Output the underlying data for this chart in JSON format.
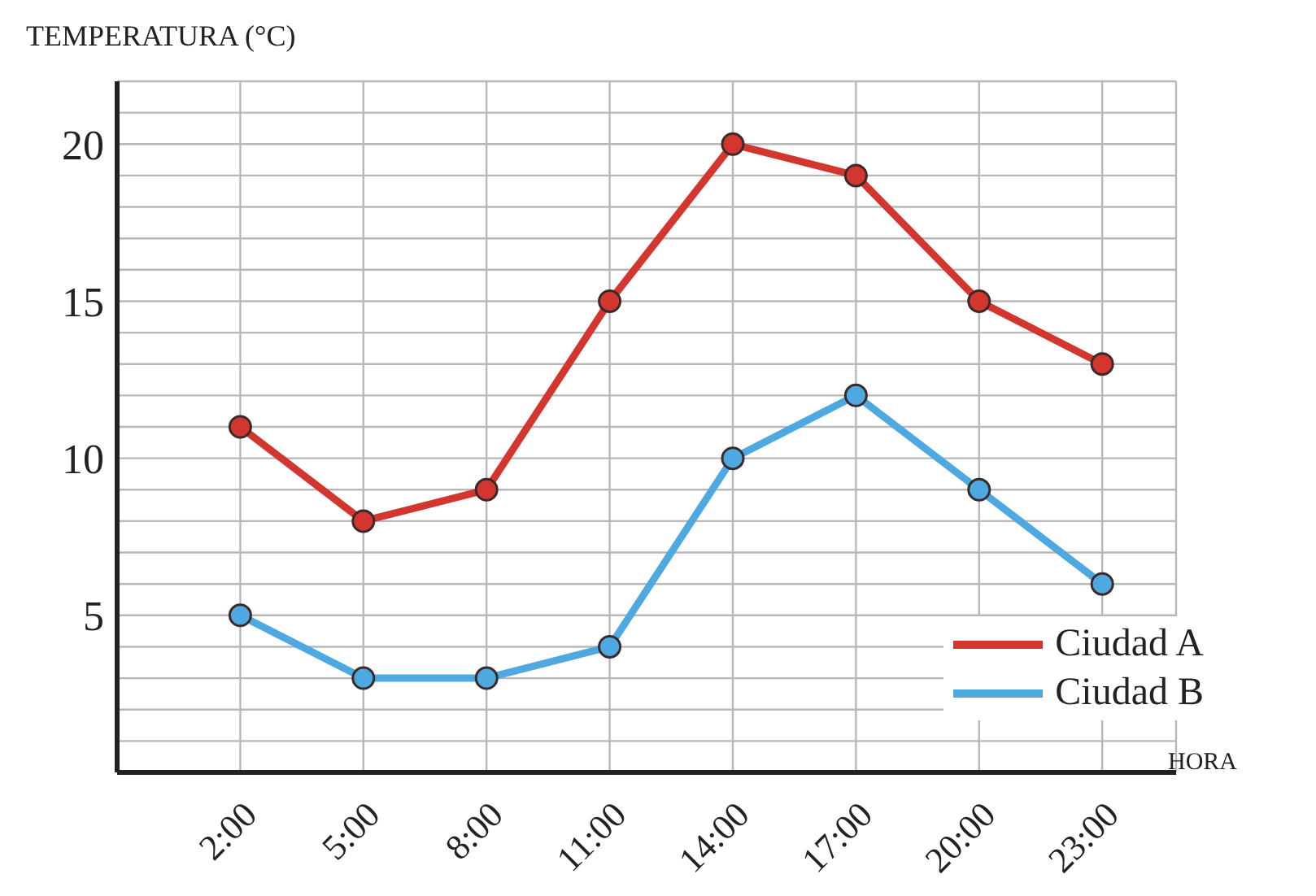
{
  "chart_data": {
    "type": "line",
    "ylabel": "TEMPERATURA (°C)",
    "xlabel": "HORA",
    "categories": [
      "2:00",
      "5:00",
      "8:00",
      "11:00",
      "14:00",
      "17:00",
      "20:00",
      "23:00"
    ],
    "series": [
      {
        "name": "Ciudad A",
        "color": "#d2362e",
        "values": [
          11,
          8,
          9,
          15,
          20,
          19,
          15,
          13
        ]
      },
      {
        "name": "Ciudad B",
        "color": "#4ea9e0",
        "values": [
          5,
          3,
          3,
          4,
          10,
          12,
          9,
          6
        ]
      }
    ],
    "ylim": [
      0,
      22
    ],
    "yticks": [
      {
        "value": 1,
        "label": null
      },
      {
        "value": 2,
        "label": null
      },
      {
        "value": 3,
        "label": null
      },
      {
        "value": 4,
        "label": null
      },
      5,
      {
        "value": 6,
        "label": null
      },
      {
        "value": 7,
        "label": null
      },
      {
        "value": 8,
        "label": null
      },
      {
        "value": 9,
        "label": null
      },
      10,
      {
        "value": 11,
        "label": null
      },
      {
        "value": 12,
        "label": null
      },
      {
        "value": 13,
        "label": null
      },
      {
        "value": 14,
        "label": null
      },
      15,
      {
        "value": 16,
        "label": null
      },
      {
        "value": 17,
        "label": null
      },
      {
        "value": 18,
        "label": null
      },
      {
        "value": 19,
        "label": null
      },
      20,
      {
        "value": 21,
        "label": null
      }
    ],
    "grid": true,
    "legend": "bottom right",
    "marker": "circle",
    "line_style": "solid"
  }
}
